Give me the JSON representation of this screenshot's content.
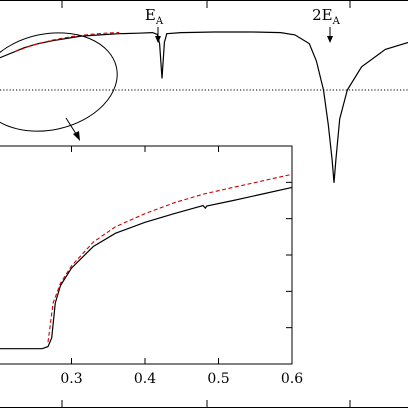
{
  "chart_data": [
    {
      "id": "main",
      "type": "line",
      "title": "",
      "xlabel": "",
      "ylabel": "",
      "x_tick_labels": [],
      "y_tick_labels": [],
      "reference_line": {
        "style": "dotted",
        "y": 0
      },
      "series": [
        {
          "style": "solid",
          "color": "#000000",
          "points": [
            [
              -0.08,
              0.45
            ],
            [
              -0.05,
              0.56
            ],
            [
              -0.02,
              0.66
            ],
            [
              0.0,
              0.73
            ],
            [
              0.03,
              0.8
            ],
            [
              0.06,
              0.85
            ],
            [
              0.09,
              0.89
            ],
            [
              0.12,
              0.93
            ],
            [
              0.16,
              0.95
            ],
            [
              0.2,
              0.97
            ],
            [
              0.24,
              0.98
            ],
            [
              0.27,
              0.99
            ],
            [
              0.28,
              0.96
            ],
            [
              0.285,
              0.8
            ],
            [
              0.29,
              0.2
            ],
            [
              0.295,
              0.82
            ],
            [
              0.3,
              0.97
            ],
            [
              0.33,
              0.99
            ],
            [
              0.4,
              1.0
            ],
            [
              0.48,
              1.0
            ],
            [
              0.54,
              0.99
            ],
            [
              0.57,
              0.95
            ],
            [
              0.6,
              0.8
            ],
            [
              0.615,
              0.5
            ],
            [
              0.63,
              0.0
            ],
            [
              0.64,
              -0.6
            ],
            [
              0.648,
              -1.2
            ],
            [
              0.652,
              -1.6
            ],
            [
              0.656,
              -1.2
            ],
            [
              0.664,
              -0.5
            ],
            [
              0.68,
              0.0
            ],
            [
              0.71,
              0.4
            ],
            [
              0.76,
              0.7
            ],
            [
              0.82,
              0.85
            ]
          ]
        },
        {
          "style": "dashed",
          "color": "#cc0000",
          "points": [
            [
              -0.02,
              0.66
            ],
            [
              0.02,
              0.78
            ],
            [
              0.06,
              0.86
            ],
            [
              0.1,
              0.92
            ],
            [
              0.14,
              0.96
            ],
            [
              0.18,
              0.985
            ],
            [
              0.2,
              0.99
            ]
          ]
        }
      ],
      "annotations": [
        {
          "text": "E",
          "subscript": "A",
          "x": 0.29
        },
        {
          "text": "2E",
          "subscript": "A",
          "x": 0.652
        }
      ]
    },
    {
      "id": "inset",
      "type": "line",
      "title": "",
      "xlabel": "",
      "ylabel": "",
      "xlim": [
        0.2,
        0.6
      ],
      "ylim": [
        0,
        1
      ],
      "x_ticks": [
        0.3,
        0.4,
        0.5,
        0.6
      ],
      "x_tick_labels": [
        "0.3",
        "0.4",
        "0.5",
        "0.6"
      ],
      "series": [
        {
          "style": "solid",
          "color": "#000000",
          "points": [
            [
              0.2,
              0.07
            ],
            [
              0.26,
              0.07
            ],
            [
              0.268,
              0.08
            ],
            [
              0.273,
              0.12
            ],
            [
              0.278,
              0.28
            ],
            [
              0.285,
              0.36
            ],
            [
              0.3,
              0.44
            ],
            [
              0.33,
              0.54
            ],
            [
              0.36,
              0.6
            ],
            [
              0.4,
              0.65
            ],
            [
              0.44,
              0.69
            ],
            [
              0.479,
              0.727
            ],
            [
              0.482,
              0.715
            ],
            [
              0.484,
              0.725
            ],
            [
              0.52,
              0.75
            ],
            [
              0.56,
              0.78
            ],
            [
              0.6,
              0.81
            ]
          ]
        },
        {
          "style": "dashed",
          "color": "#cc0000",
          "points": [
            [
              0.268,
              0.1
            ],
            [
              0.275,
              0.28
            ],
            [
              0.285,
              0.37
            ],
            [
              0.3,
              0.45
            ],
            [
              0.33,
              0.56
            ],
            [
              0.36,
              0.63
            ],
            [
              0.4,
              0.69
            ],
            [
              0.44,
              0.74
            ],
            [
              0.48,
              0.78
            ],
            [
              0.52,
              0.81
            ],
            [
              0.56,
              0.84
            ],
            [
              0.6,
              0.87
            ]
          ]
        }
      ]
    }
  ]
}
